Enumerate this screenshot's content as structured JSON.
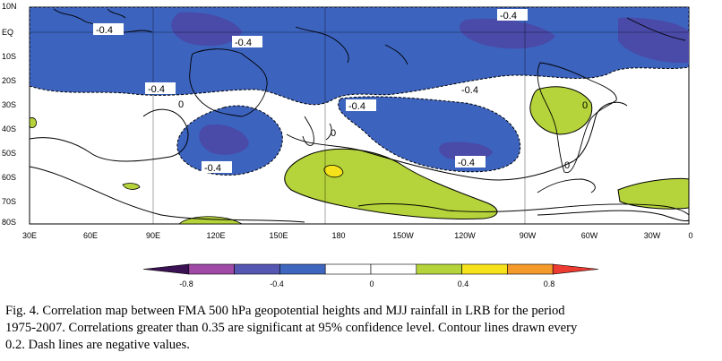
{
  "map": {
    "lat_labels": [
      "10N",
      "EQ",
      "10S",
      "20S",
      "30S",
      "40S",
      "50S",
      "60S",
      "70S",
      "80S"
    ],
    "lon_labels": [
      "30E",
      "60E",
      "90E",
      "120E",
      "150E",
      "180",
      "150W",
      "120W",
      "90W",
      "60W",
      "30W",
      "0"
    ],
    "contour_labels": [
      "-0.4",
      "-0.4",
      "-0.4",
      "-0.4",
      "-0.4",
      "-0.4",
      "-0.4",
      "-0.4",
      "0",
      "0",
      "0",
      "0"
    ],
    "colors": {
      "neg_light": "#3c63be",
      "neg_mid": "#4a4aa8",
      "pos_light": "#b5d33a",
      "pos_mid": "#f6e21b",
      "coast": "#000000"
    }
  },
  "colorbar": {
    "colors": [
      "#3a1153",
      "#9e4aa6",
      "#5656b3",
      "#3f67bf",
      "#ffffff",
      "#ffffff",
      "#b5d33a",
      "#f6e21b",
      "#f39a2b",
      "#ec3b31"
    ],
    "tick_labels": [
      "-0.8",
      "-0.4",
      "0",
      "0.4",
      "0.8"
    ]
  },
  "caption": {
    "line1": "Fig. 4. Correlation map between FMA 500 hPa geopotential heights and MJJ rainfall in LRB for the period",
    "line2": "1975-2007. Correlations greater than 0.35 are significant at 95% confidence level. Contour lines drawn every",
    "line3": "0.2. Dash lines are negative values."
  }
}
